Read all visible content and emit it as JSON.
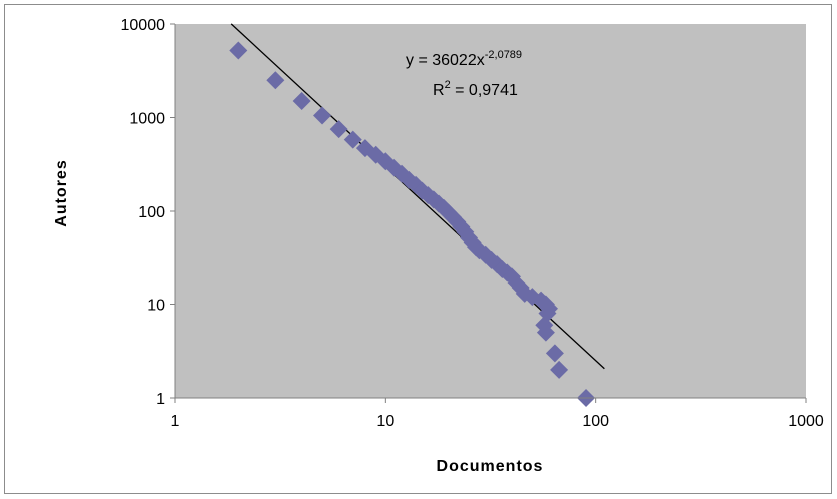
{
  "chart_data": {
    "type": "scatter",
    "xscale": "log",
    "yscale": "log",
    "xlim": [
      1,
      1000
    ],
    "ylim": [
      1,
      10000
    ],
    "xticks": [
      "1",
      "10",
      "100",
      "1000"
    ],
    "yticks": [
      "1",
      "10",
      "100",
      "1000",
      "10000"
    ],
    "xlabel": "Documentos",
    "ylabel": "Autores",
    "grid": false,
    "plot_background": "#c0c0c0",
    "marker_color": "#6b6ba6",
    "trendline": {
      "type": "power",
      "coefficient": 36022,
      "exponent": -2.0789,
      "x_range": [
        1.85,
        110
      ],
      "equation_text": "y = 36022x",
      "equation_exponent_text": "-2,0789",
      "r2_prefix": "R",
      "r2_exponent": "2",
      "r2_text": " = 0,9741"
    },
    "series": [
      {
        "points": [
          [
            2,
            5200
          ],
          [
            3,
            2500
          ],
          [
            4,
            1500
          ],
          [
            5,
            1050
          ],
          [
            6,
            750
          ],
          [
            7,
            580
          ],
          [
            8,
            470
          ],
          [
            9,
            400
          ],
          [
            10,
            340
          ],
          [
            11,
            290
          ],
          [
            12,
            250
          ],
          [
            13,
            215
          ],
          [
            14,
            190
          ],
          [
            15,
            165
          ],
          [
            16,
            148
          ],
          [
            17,
            133
          ],
          [
            18,
            120
          ],
          [
            19,
            108
          ],
          [
            20,
            96
          ],
          [
            21,
            86
          ],
          [
            22,
            77
          ],
          [
            23,
            68
          ],
          [
            24,
            60
          ],
          [
            25,
            52
          ],
          [
            26,
            46
          ],
          [
            27,
            41
          ],
          [
            28,
            38
          ],
          [
            30,
            34
          ],
          [
            32,
            30
          ],
          [
            34,
            27
          ],
          [
            36,
            24
          ],
          [
            38,
            22
          ],
          [
            40,
            20
          ],
          [
            42,
            17
          ],
          [
            44,
            15
          ],
          [
            46,
            13
          ],
          [
            50,
            12
          ],
          [
            55,
            11
          ],
          [
            58,
            10
          ],
          [
            60,
            9
          ],
          [
            59,
            8
          ],
          [
            57,
            6
          ],
          [
            58,
            5
          ],
          [
            64,
            3
          ],
          [
            67,
            2
          ],
          [
            90,
            1
          ]
        ]
      }
    ]
  }
}
